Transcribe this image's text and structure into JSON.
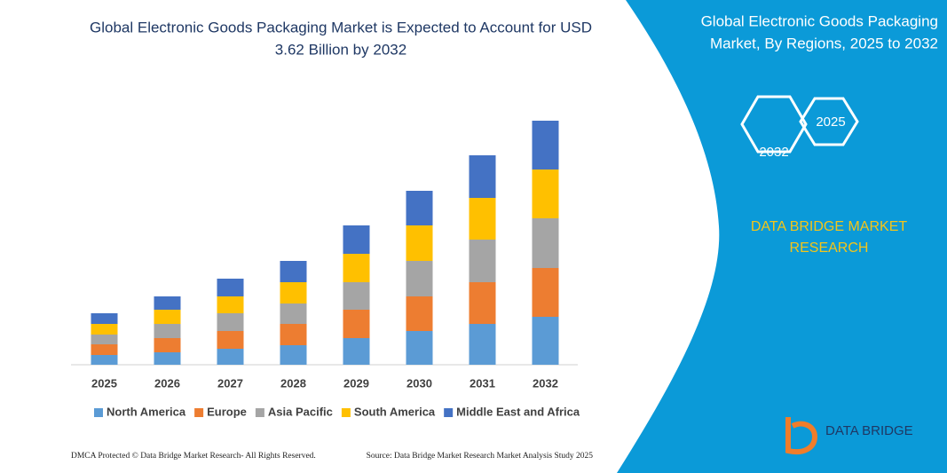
{
  "chart_data": {
    "type": "stacked_bar",
    "title_lines": [
      "Global Electronic Goods Packaging Market is Expected to Account for USD",
      "3.62 Billion by 2032"
    ],
    "categories": [
      "2025",
      "2026",
      "2027",
      "2028",
      "2029",
      "2030",
      "2031",
      "2032"
    ],
    "series": [
      {
        "name": "North America",
        "color": "#5b9bd5",
        "values": [
          11,
          14,
          18,
          22,
          30,
          38,
          46,
          54
        ]
      },
      {
        "name": "Europe",
        "color": "#ed7d31",
        "values": [
          12,
          16,
          20,
          24,
          32,
          39,
          47,
          55
        ]
      },
      {
        "name": "Asia Pacific",
        "color": "#a5a5a5",
        "values": [
          11,
          16,
          20,
          23,
          31,
          40,
          48,
          56
        ]
      },
      {
        "name": "South America",
        "color": "#ffc000",
        "values": [
          12,
          16,
          19,
          24,
          32,
          40,
          47,
          55
        ]
      },
      {
        "name": "Middle East and Africa",
        "color": "#4472c4",
        "values": [
          12,
          15,
          20,
          24,
          32,
          39,
          48,
          55
        ]
      }
    ],
    "ylim": [
      0,
      290
    ]
  },
  "panel": {
    "title_lines": [
      "Global Electronic Goods Packaging",
      "Market, By Regions, 2025 to 2032"
    ],
    "hex_labels": [
      "2025",
      "2032"
    ],
    "brand_lines": [
      "DATA BRIDGE MARKET",
      "RESEARCH"
    ],
    "logo": "DATA BRIDGE"
  },
  "footer": {
    "left": "DMCA Protected © Data Bridge Market Research-  All Rights Reserved.",
    "right": "Source: Data Bridge Market Research  Market Analysis Study 2025"
  }
}
